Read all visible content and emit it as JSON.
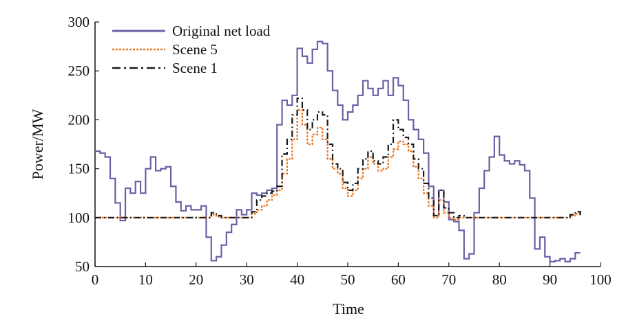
{
  "chart_data": {
    "type": "line",
    "xlabel": "Time",
    "ylabel": "Power/MW",
    "xlim": [
      0,
      100
    ],
    "ylim": [
      50,
      300
    ],
    "xticks": [
      0,
      10,
      20,
      30,
      40,
      50,
      60,
      70,
      80,
      90,
      100
    ],
    "yticks": [
      50,
      100,
      150,
      200,
      250,
      300
    ],
    "grid": false,
    "legend_position": "top-left",
    "series": [
      {
        "name": "Original net load",
        "color": "#6b5fa5",
        "style": "solid",
        "step": true,
        "x": [
          0,
          1,
          2,
          3,
          4,
          5,
          6,
          7,
          8,
          9,
          10,
          11,
          12,
          13,
          14,
          15,
          16,
          17,
          18,
          19,
          20,
          21,
          22,
          23,
          24,
          25,
          26,
          27,
          28,
          29,
          30,
          31,
          32,
          33,
          34,
          35,
          36,
          37,
          38,
          39,
          40,
          41,
          42,
          43,
          44,
          45,
          46,
          47,
          48,
          49,
          50,
          51,
          52,
          53,
          54,
          55,
          56,
          57,
          58,
          59,
          60,
          61,
          62,
          63,
          64,
          65,
          66,
          67,
          68,
          69,
          70,
          71,
          72,
          73,
          74,
          75,
          76,
          77,
          78,
          79,
          80,
          81,
          82,
          83,
          84,
          85,
          86,
          87,
          88,
          89,
          90,
          91,
          92,
          93,
          94,
          95,
          96
        ],
        "y": [
          168,
          166,
          162,
          140,
          115,
          97,
          130,
          125,
          137,
          125,
          150,
          162,
          148,
          150,
          152,
          132,
          116,
          107,
          112,
          108,
          108,
          112,
          80,
          56,
          60,
          72,
          85,
          93,
          108,
          103,
          108,
          125,
          123,
          125,
          128,
          130,
          195,
          220,
          215,
          225,
          273,
          265,
          258,
          272,
          280,
          278,
          250,
          230,
          215,
          200,
          208,
          215,
          225,
          240,
          232,
          225,
          232,
          240,
          225,
          243,
          235,
          220,
          200,
          190,
          180,
          166,
          132,
          102,
          128,
          116,
          98,
          96,
          87,
          58,
          63,
          105,
          130,
          148,
          162,
          183,
          164,
          158,
          155,
          158,
          154,
          148,
          120,
          68,
          80,
          60,
          55,
          56,
          58,
          55,
          58,
          64,
          64
        ]
      },
      {
        "name": "Scene 5",
        "color": "#e8731f",
        "style": "dotted",
        "step": true,
        "x": [
          0,
          1,
          2,
          3,
          4,
          5,
          6,
          7,
          8,
          9,
          10,
          11,
          12,
          13,
          14,
          15,
          16,
          17,
          18,
          19,
          20,
          21,
          22,
          23,
          24,
          25,
          26,
          27,
          28,
          29,
          30,
          31,
          32,
          33,
          34,
          35,
          36,
          37,
          38,
          39,
          40,
          41,
          42,
          43,
          44,
          45,
          46,
          47,
          48,
          49,
          50,
          51,
          52,
          53,
          54,
          55,
          56,
          57,
          58,
          59,
          60,
          61,
          62,
          63,
          64,
          65,
          66,
          67,
          68,
          69,
          70,
          71,
          72,
          73,
          74,
          75,
          76,
          77,
          78,
          79,
          80,
          81,
          82,
          83,
          84,
          85,
          86,
          87,
          88,
          89,
          90,
          91,
          92,
          93,
          94,
          95,
          96
        ],
        "y": [
          100,
          100,
          100,
          100,
          100,
          100,
          100,
          100,
          100,
          100,
          100,
          100,
          100,
          100,
          100,
          100,
          100,
          100,
          100,
          100,
          100,
          100,
          100,
          103,
          101,
          100,
          100,
          100,
          100,
          100,
          100,
          104,
          108,
          112,
          118,
          123,
          128,
          145,
          160,
          180,
          210,
          195,
          175,
          185,
          192,
          180,
          160,
          150,
          145,
          130,
          122,
          128,
          140,
          150,
          162,
          155,
          148,
          150,
          162,
          170,
          178,
          175,
          168,
          152,
          140,
          125,
          112,
          100,
          118,
          105,
          100,
          98,
          100,
          100,
          100,
          100,
          100,
          100,
          100,
          100,
          100,
          100,
          100,
          100,
          100,
          100,
          100,
          100,
          100,
          100,
          100,
          100,
          100,
          100,
          102,
          104,
          106
        ]
      },
      {
        "name": "Scene 1",
        "color": "#1a1a1a",
        "style": "dashdot",
        "step": true,
        "x": [
          0,
          1,
          2,
          3,
          4,
          5,
          6,
          7,
          8,
          9,
          10,
          11,
          12,
          13,
          14,
          15,
          16,
          17,
          18,
          19,
          20,
          21,
          22,
          23,
          24,
          25,
          26,
          27,
          28,
          29,
          30,
          31,
          32,
          33,
          34,
          35,
          36,
          37,
          38,
          39,
          40,
          41,
          42,
          43,
          44,
          45,
          46,
          47,
          48,
          49,
          50,
          51,
          52,
          53,
          54,
          55,
          56,
          57,
          58,
          59,
          60,
          61,
          62,
          63,
          64,
          65,
          66,
          67,
          68,
          69,
          70,
          71,
          72,
          73,
          74,
          75,
          76,
          77,
          78,
          79,
          80,
          81,
          82,
          83,
          84,
          85,
          86,
          87,
          88,
          89,
          90,
          91,
          92,
          93,
          94,
          95,
          96
        ],
        "y": [
          100,
          100,
          100,
          100,
          100,
          100,
          100,
          100,
          100,
          100,
          100,
          100,
          100,
          100,
          100,
          100,
          100,
          100,
          100,
          100,
          100,
          100,
          100,
          105,
          102,
          100,
          100,
          100,
          100,
          100,
          100,
          106,
          118,
          122,
          125,
          127,
          132,
          165,
          180,
          205,
          222,
          210,
          190,
          200,
          208,
          205,
          175,
          155,
          150,
          136,
          128,
          135,
          150,
          160,
          168,
          158,
          155,
          162,
          175,
          200,
          190,
          182,
          175,
          160,
          150,
          135,
          120,
          102,
          128,
          110,
          105,
          100,
          102,
          100,
          100,
          100,
          100,
          100,
          100,
          100,
          100,
          100,
          100,
          100,
          100,
          100,
          100,
          100,
          100,
          100,
          100,
          100,
          100,
          100,
          103,
          106,
          102
        ]
      }
    ]
  }
}
